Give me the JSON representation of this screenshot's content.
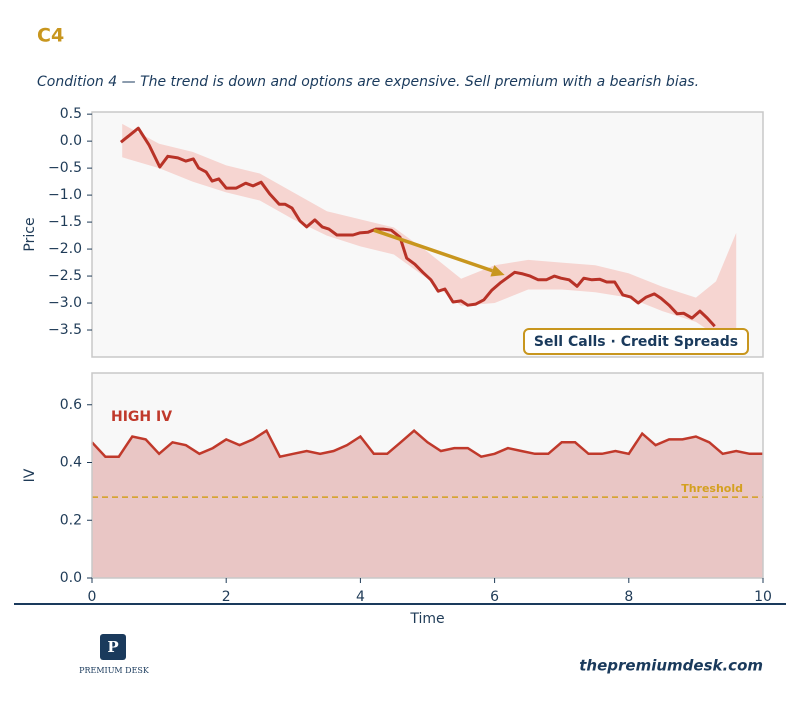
{
  "header": {
    "title": "C4",
    "subtitle": "Condition 4 — The trend is down and options are expensive. Sell premium with a bearish bias."
  },
  "footer": {
    "logo": "PREMIUM DESK",
    "url": "thepremiumdesk.com"
  },
  "chart_data": [
    {
      "type": "line",
      "ylabel": "Price",
      "color": "#b83227",
      "x": [
        0.43,
        0.69,
        0.85,
        1.01,
        1.13,
        1.28,
        1.4,
        1.51,
        1.59,
        1.7,
        1.79,
        1.89,
        2.0,
        2.15,
        2.29,
        2.4,
        2.52,
        2.65,
        2.79,
        2.88,
        2.98,
        3.1,
        3.2,
        3.32,
        3.43,
        3.53,
        3.65,
        3.77,
        3.89,
        3.99,
        4.11,
        4.23,
        4.34,
        4.46,
        4.59,
        4.69,
        4.81,
        4.93,
        5.05,
        5.16,
        5.26,
        5.38,
        5.5,
        5.6,
        5.72,
        5.84,
        5.96,
        6.08,
        6.18,
        6.3,
        6.42,
        6.53,
        6.65,
        6.77,
        6.89,
        6.99,
        7.11,
        7.23,
        7.33,
        7.45,
        7.57,
        7.67,
        7.79,
        7.91,
        8.03,
        8.14,
        8.26,
        8.38,
        8.48,
        8.6,
        8.72,
        8.82,
        8.94,
        9.06,
        9.17,
        9.28
      ],
      "values": [
        -0.02,
        0.24,
        -0.07,
        -0.48,
        -0.28,
        -0.31,
        -0.37,
        -0.33,
        -0.5,
        -0.57,
        -0.74,
        -0.7,
        -0.87,
        -0.87,
        -0.78,
        -0.83,
        -0.76,
        -0.98,
        -1.17,
        -1.17,
        -1.24,
        -1.48,
        -1.59,
        -1.46,
        -1.59,
        -1.63,
        -1.74,
        -1.74,
        -1.74,
        -1.7,
        -1.69,
        -1.63,
        -1.63,
        -1.65,
        -1.78,
        -2.17,
        -2.28,
        -2.43,
        -2.57,
        -2.78,
        -2.74,
        -2.98,
        -2.96,
        -3.04,
        -3.02,
        -2.94,
        -2.76,
        -2.63,
        -2.54,
        -2.43,
        -2.46,
        -2.5,
        -2.57,
        -2.57,
        -2.5,
        -2.54,
        -2.57,
        -2.69,
        -2.54,
        -2.57,
        -2.56,
        -2.61,
        -2.61,
        -2.85,
        -2.89,
        -3.0,
        -2.89,
        -2.83,
        -2.91,
        -3.04,
        -3.2,
        -3.19,
        -3.28,
        -3.15,
        -3.28,
        -3.43
      ],
      "band": {
        "color": "#f4aaa1",
        "x": [
          0.45,
          1,
          1.5,
          2,
          2.5,
          3,
          3.5,
          4,
          4.5,
          5,
          5.5,
          6,
          6.5,
          7,
          7.5,
          8,
          8.5,
          9,
          9.3,
          9.6
        ],
        "upper": [
          0.32,
          -0.05,
          -0.2,
          -0.45,
          -0.6,
          -0.95,
          -1.3,
          -1.45,
          -1.6,
          -2.05,
          -2.55,
          -2.3,
          -2.2,
          -2.25,
          -2.3,
          -2.45,
          -2.7,
          -2.9,
          -2.6,
          -1.7
        ],
        "lower": [
          -0.3,
          -0.5,
          -0.75,
          -0.95,
          -1.1,
          -1.45,
          -1.75,
          -1.95,
          -2.1,
          -2.55,
          -3.05,
          -3.0,
          -2.75,
          -2.75,
          -2.8,
          -2.9,
          -3.15,
          -3.35,
          -3.6,
          -3.5
        ]
      },
      "arrow": {
        "x": [
          4.2,
          6.15
        ],
        "y": [
          -1.65,
          -2.48
        ],
        "color": "#c8961e"
      },
      "box_label": "Sell Calls · Credit Spreads",
      "xlim": [
        0,
        10
      ],
      "ylim": [
        -4.0,
        0.54
      ],
      "yticks": [
        {
          "value": 0.5,
          "label": "0.5"
        },
        {
          "value": 0,
          "label": "0.0"
        },
        {
          "value": -0.5,
          "label": "−0.5"
        },
        {
          "value": -1,
          "label": "−1.0"
        },
        {
          "value": -1.5,
          "label": "−1.5"
        },
        {
          "value": -2,
          "label": "−2.0"
        },
        {
          "value": -2.5,
          "label": "−2.5"
        },
        {
          "value": -3,
          "label": "−3.0"
        },
        {
          "value": -3.5,
          "label": "−3.5"
        }
      ]
    },
    {
      "type": "area",
      "ylabel": "IV",
      "xlabel": "Time",
      "color": "#c0392b",
      "fill": "#e9c6c5",
      "x": [
        0,
        0.2,
        0.4,
        0.6,
        0.8,
        1,
        1.2,
        1.4,
        1.6,
        1.8,
        2,
        2.2,
        2.4,
        2.6,
        2.8,
        3,
        3.2,
        3.4,
        3.6,
        3.8,
        4,
        4.2,
        4.4,
        4.6,
        4.8,
        5,
        5.2,
        5.4,
        5.6,
        5.8,
        6,
        6.2,
        6.4,
        6.6,
        6.8,
        7,
        7.2,
        7.4,
        7.6,
        7.8,
        8,
        8.2,
        8.4,
        8.6,
        8.8,
        9,
        9.2,
        9.4,
        9.6,
        9.8,
        10
      ],
      "values": [
        0.47,
        0.42,
        0.42,
        0.49,
        0.48,
        0.43,
        0.47,
        0.46,
        0.43,
        0.45,
        0.48,
        0.46,
        0.48,
        0.51,
        0.42,
        0.43,
        0.44,
        0.43,
        0.44,
        0.46,
        0.49,
        0.43,
        0.43,
        0.47,
        0.51,
        0.47,
        0.44,
        0.45,
        0.45,
        0.42,
        0.43,
        0.45,
        0.44,
        0.43,
        0.43,
        0.47,
        0.47,
        0.43,
        0.43,
        0.44,
        0.43,
        0.5,
        0.46,
        0.48,
        0.48,
        0.49,
        0.47,
        0.43,
        0.44,
        0.43,
        0.43
      ],
      "threshold": {
        "value": 0.28,
        "label": "Threshold",
        "color": "#d4a020"
      },
      "annotation": "HIGH IV",
      "xlim": [
        0,
        10
      ],
      "ylim": [
        0,
        0.71
      ],
      "xticks": [
        0,
        2,
        4,
        6,
        8,
        10
      ],
      "yticks": [
        {
          "value": 0,
          "label": "0.0"
        },
        0.2,
        0.4,
        0.6
      ]
    }
  ]
}
